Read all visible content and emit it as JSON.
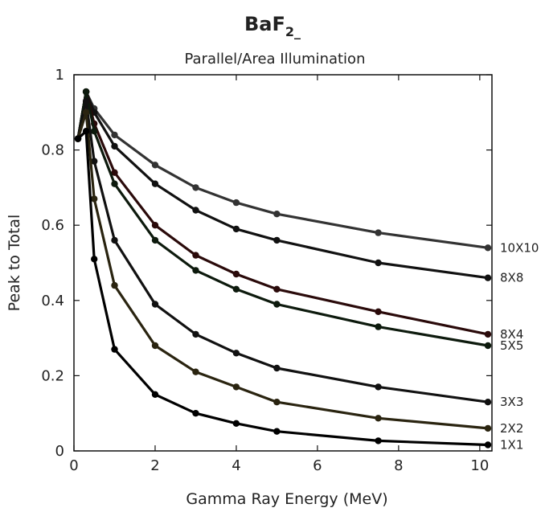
{
  "chart_data": {
    "type": "line",
    "title": "BaF2_",
    "title_main": "BaF",
    "title_sub": "2_",
    "subtitle": "Parallel/Area Illumination",
    "xlabel": "Gamma Ray Energy (MeV)",
    "ylabel": "Peak to Total",
    "xlim": [
      0,
      10.3
    ],
    "ylim": [
      0,
      1
    ],
    "xticks": [
      0,
      2,
      4,
      6,
      8,
      10
    ],
    "yticks": [
      0,
      0.2,
      0.4,
      0.6,
      0.8,
      1
    ],
    "xtick_labels": [
      "0",
      "2",
      "4",
      "6",
      "8",
      "10"
    ],
    "ytick_labels": [
      "0",
      "0.2",
      "0.4",
      "0.6",
      "0.8",
      "1"
    ],
    "grid": false,
    "legend": "labels at right end of each line",
    "series": [
      {
        "name": "10X10",
        "color": "#333333",
        "x": [
          0.1,
          0.3,
          0.5,
          1,
          2,
          3,
          4,
          5,
          7.5,
          10.2
        ],
        "y": [
          0.83,
          0.955,
          0.91,
          0.84,
          0.76,
          0.7,
          0.66,
          0.63,
          0.58,
          0.54
        ]
      },
      {
        "name": "8X8",
        "color": "#111111",
        "x": [
          0.1,
          0.3,
          0.5,
          1,
          2,
          3,
          4,
          5,
          7.5,
          10.2
        ],
        "y": [
          0.83,
          0.955,
          0.9,
          0.81,
          0.71,
          0.64,
          0.59,
          0.56,
          0.5,
          0.46
        ]
      },
      {
        "name": "8X4",
        "color": "#2a0a0a",
        "x": [
          0.1,
          0.3,
          0.5,
          1,
          2,
          3,
          4,
          5,
          7.5,
          10.2
        ],
        "y": [
          0.83,
          0.955,
          0.87,
          0.74,
          0.6,
          0.52,
          0.47,
          0.43,
          0.37,
          0.31
        ]
      },
      {
        "name": "5X5",
        "color": "#0d1a0d",
        "x": [
          0.1,
          0.3,
          0.5,
          1,
          2,
          3,
          4,
          5,
          7.5,
          10.2
        ],
        "y": [
          0.83,
          0.955,
          0.85,
          0.71,
          0.56,
          0.48,
          0.43,
          0.39,
          0.33,
          0.28
        ]
      },
      {
        "name": "3X3",
        "color": "#111111",
        "x": [
          0.1,
          0.3,
          0.5,
          1,
          2,
          3,
          4,
          5,
          7.5,
          10.2
        ],
        "y": [
          0.83,
          0.93,
          0.77,
          0.56,
          0.39,
          0.31,
          0.26,
          0.22,
          0.17,
          0.13
        ]
      },
      {
        "name": "2X2",
        "color": "#2a2410",
        "x": [
          0.1,
          0.3,
          0.5,
          1,
          2,
          3,
          4,
          5,
          7.5,
          10.2
        ],
        "y": [
          0.83,
          0.9,
          0.67,
          0.44,
          0.28,
          0.21,
          0.17,
          0.13,
          0.087,
          0.06
        ]
      },
      {
        "name": "1X1",
        "color": "#000000",
        "x": [
          0.1,
          0.3,
          0.5,
          1,
          2,
          3,
          4,
          5,
          7.5,
          10.2
        ],
        "y": [
          0.83,
          0.85,
          0.51,
          0.27,
          0.15,
          0.1,
          0.073,
          0.052,
          0.027,
          0.016
        ]
      }
    ]
  }
}
